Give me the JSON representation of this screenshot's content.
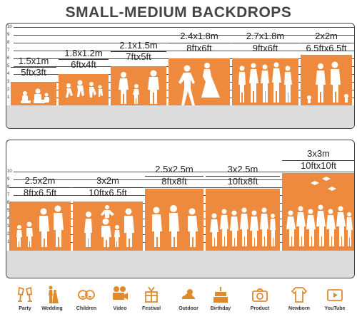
{
  "title": "SMALL-MEDIUM BACKDROPS",
  "ruler_numbers": [
    "10",
    "9",
    "8",
    "7",
    "6",
    "5",
    "4",
    "3",
    "2",
    "1"
  ],
  "row1": [
    {
      "metric": "1.5x1m",
      "imperial": "5ftx3ft"
    },
    {
      "metric": "1.8x1.2m",
      "imperial": "6ftx4ft"
    },
    {
      "metric": "2.1x1.5m",
      "imperial": "7ftx5ft"
    },
    {
      "metric": "2.4x1.8m",
      "imperial": "8ftx6ft"
    },
    {
      "metric": "2.7x1.8m",
      "imperial": "9ftx6ft"
    },
    {
      "metric": "2x2m",
      "imperial": "6.5ftx6.5ft"
    }
  ],
  "row2": [
    {
      "metric": "2.5x2m",
      "imperial": "8ftx6.5ft"
    },
    {
      "metric": "3x2m",
      "imperial": "10ftx6.5ft"
    },
    {
      "metric": "2.5x2.5m",
      "imperial": "8ftx8ft"
    },
    {
      "metric": "3x2.5m",
      "imperial": "10ftx8ft"
    },
    {
      "metric": "3x3m",
      "imperial": "10ftx10ft"
    }
  ],
  "icons": [
    {
      "label": "Party",
      "icon": "cheers-glasses-icon"
    },
    {
      "label": "Wedding",
      "icon": "bride-groom-icon"
    },
    {
      "label": "Children",
      "icon": "child-faces-icon"
    },
    {
      "label": "Video",
      "icon": "video-camera-icon"
    },
    {
      "label": "Festival",
      "icon": "festival-gift-icon"
    },
    {
      "label": "Outdoor",
      "icon": "sun-cloud-icon"
    },
    {
      "label": "Birthday",
      "icon": "birthday-cake-icon"
    },
    {
      "label": "Product",
      "icon": "product-camera-icon"
    },
    {
      "label": "Newborn",
      "icon": "baby-onesie-icon"
    },
    {
      "label": "YouTube",
      "icon": "youtube-play-icon"
    }
  ],
  "colors": {
    "backdrop": "#ee8a3d",
    "floor": "#dcdcdc",
    "icon": "#e08a2e",
    "frame": "#444444"
  }
}
